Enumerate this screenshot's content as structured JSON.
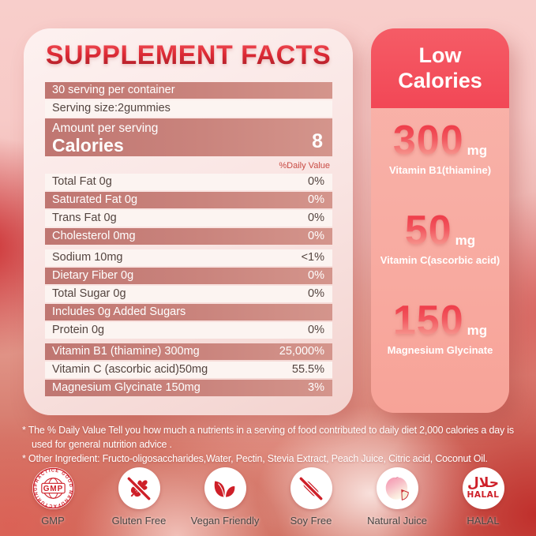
{
  "title": "SUPPLEMENT FACTS",
  "serving_rows": [
    {
      "label": "30 serving per container",
      "value": "",
      "variant": "dark"
    },
    {
      "label": "Serving size:2gummies",
      "value": "",
      "variant": "light"
    }
  ],
  "calories_row": {
    "line1": "Amount per serving",
    "line2": "Calories",
    "value": "8"
  },
  "daily_value_header": "%Daily Value",
  "nutrient_rows": [
    {
      "label": "Total Fat 0g",
      "value": "0%",
      "variant": "light",
      "gap_before": false
    },
    {
      "label": "Saturated Fat 0g",
      "value": "0%",
      "variant": "dark",
      "gap_before": false
    },
    {
      "label": "Trans Fat 0g",
      "value": "0%",
      "variant": "light",
      "gap_before": false
    },
    {
      "label": "Cholesterol 0mg",
      "value": "0%",
      "variant": "dark",
      "gap_before": false
    },
    {
      "label": "Sodium 10mg",
      "value": "<1%",
      "variant": "light",
      "gap_before": true
    },
    {
      "label": "Dietary Fiber 0g",
      "value": "0%",
      "variant": "dark",
      "gap_before": false
    },
    {
      "label": "Total Sugar 0g",
      "value": "0%",
      "variant": "light",
      "gap_before": false
    },
    {
      "label": "Includes 0g Added Sugars",
      "value": "",
      "variant": "dark",
      "gap_before": false
    },
    {
      "label": "Protein 0g",
      "value": "0%",
      "variant": "light",
      "gap_before": false
    },
    {
      "label": "Vitamin B1 (thiamine) 300mg",
      "value": "25,000%",
      "variant": "dark",
      "gap_before": true
    },
    {
      "label": "Vitamin C (ascorbic acid)50mg",
      "value": "55.5%",
      "variant": "light",
      "gap_before": false
    },
    {
      "label": "Magnesium Glycinate 150mg",
      "value": "3%",
      "variant": "dark",
      "gap_before": false
    }
  ],
  "side_panel": {
    "header": "Low Calories",
    "items": [
      {
        "amount": "300",
        "unit": "mg",
        "name": "Vitamin B1(thiamine)"
      },
      {
        "amount": "50",
        "unit": "mg",
        "name": "Vitamin C(ascorbic acid)"
      },
      {
        "amount": "150",
        "unit": "mg",
        "name": "Magnesium Glycinate"
      }
    ]
  },
  "footnotes": [
    "* The % Daily Value Tell you how much a nutrients in a serving of food contributed to daily diet 2,000 calories a day is used for general nutrition advice .",
    "* Other Ingredient: Fructo-oligosaccharides,Water, Pectin, Stevia Extract, Peach Juice, Citric acid, Coconut Oil."
  ],
  "badges": [
    {
      "icon": "gmp-seal-icon",
      "label": "GMP",
      "seal_text": "PRACTICE GOOD MANUFACTURING",
      "seal_center": "GMP"
    },
    {
      "icon": "gluten-free-icon",
      "label": "Gluten Free"
    },
    {
      "icon": "vegan-leaf-icon",
      "label": "Vegan Friendly"
    },
    {
      "icon": "soy-free-icon",
      "label": "Soy Free"
    },
    {
      "icon": "peach-icon",
      "label": "Natural Juice"
    },
    {
      "icon": "halal-icon",
      "label": "HALAL",
      "arabic": "حلال",
      "text": "HALAL"
    }
  ],
  "colors": {
    "accent_red": "#ce1f28",
    "row_dark": "#c67f79",
    "row_light": "#fcf4f1",
    "side_header": "#f24756",
    "side_body": "#f9b2a9",
    "background_pink": "#f8cecb"
  }
}
